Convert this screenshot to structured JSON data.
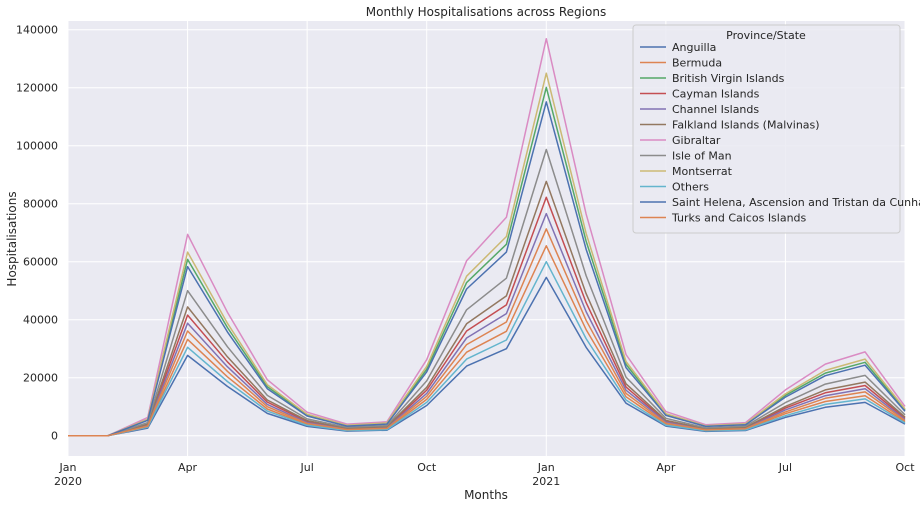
{
  "chart_data": {
    "type": "line",
    "title": "Monthly Hospitalisations across Regions",
    "xlabel": "Months",
    "ylabel": "Hospitalisations",
    "x": [
      "2020-01",
      "2020-02",
      "2020-03",
      "2020-04",
      "2020-05",
      "2020-06",
      "2020-07",
      "2020-08",
      "2020-09",
      "2020-10",
      "2020-11",
      "2020-12",
      "2021-01",
      "2021-02",
      "2021-03",
      "2021-04",
      "2021-05",
      "2021-06",
      "2021-07",
      "2021-08",
      "2021-09",
      "2021-10"
    ],
    "x_ticks": [
      {
        "label": "Jan",
        "sub": "2020",
        "at": "2020-01"
      },
      {
        "label": "Apr",
        "sub": "",
        "at": "2020-04"
      },
      {
        "label": "Jul",
        "sub": "",
        "at": "2020-07"
      },
      {
        "label": "Oct",
        "sub": "",
        "at": "2020-10"
      },
      {
        "label": "Jan",
        "sub": "2021",
        "at": "2021-01"
      },
      {
        "label": "Apr",
        "sub": "",
        "at": "2021-04"
      },
      {
        "label": "Jul",
        "sub": "",
        "at": "2021-07"
      },
      {
        "label": "Oct",
        "sub": "",
        "at": "2021-10"
      }
    ],
    "y_ticks": [
      "0",
      "20000",
      "40000",
      "60000",
      "80000",
      "100000",
      "120000",
      "140000"
    ],
    "ylim": [
      -7000,
      143000
    ],
    "grid": true,
    "legend": {
      "title": "Province/State",
      "placement": "top-right"
    },
    "series": [
      {
        "name": "Anguilla",
        "color": "#4c72b0",
        "values": [
          0,
          0,
          2600,
          27700,
          17000,
          7700,
          3200,
          1600,
          1900,
          10400,
          24000,
          30000,
          54600,
          30500,
          11200,
          3300,
          1500,
          1800,
          6300,
          9800,
          11500,
          4000
        ]
      },
      {
        "name": "Bermuda",
        "color": "#dd8452",
        "values": [
          0,
          0,
          3000,
          33200,
          20300,
          9200,
          3900,
          1900,
          2300,
          12500,
          28800,
          36000,
          65500,
          36600,
          13400,
          4000,
          1800,
          2200,
          7600,
          11800,
          13800,
          4800
        ]
      },
      {
        "name": "British Virgin Islands",
        "color": "#55a868",
        "values": [
          0,
          0,
          5500,
          60800,
          37300,
          16900,
          7100,
          3500,
          4200,
          22900,
          52800,
          66000,
          120100,
          67100,
          24600,
          7300,
          3300,
          4000,
          13900,
          21600,
          25300,
          8800
        ]
      },
      {
        "name": "Cayman Islands",
        "color": "#c44e52",
        "values": [
          0,
          0,
          3700,
          41600,
          25500,
          11600,
          4900,
          2400,
          2900,
          15700,
          36100,
          45100,
          82200,
          45900,
          16800,
          5000,
          2300,
          2700,
          9500,
          14800,
          17300,
          6000
        ]
      },
      {
        "name": "Channel Islands",
        "color": "#8172b3",
        "values": [
          0,
          0,
          3500,
          38800,
          23800,
          10800,
          4500,
          2200,
          2700,
          14600,
          33700,
          42100,
          76600,
          42800,
          15700,
          4700,
          2100,
          2500,
          8900,
          13800,
          16200,
          5600
        ]
      },
      {
        "name": "Falkland Islands (Malvinas)",
        "color": "#937860",
        "values": [
          0,
          0,
          4000,
          44400,
          27200,
          12300,
          5200,
          2600,
          3100,
          16700,
          38600,
          48200,
          87700,
          49000,
          17900,
          5300,
          2400,
          2900,
          10100,
          15800,
          18500,
          6400
        ]
      },
      {
        "name": "Gibraltar",
        "color": "#da8bc3",
        "values": [
          0,
          0,
          6300,
          69400,
          42600,
          19300,
          8100,
          4000,
          4800,
          26200,
          60300,
          75300,
          136900,
          76500,
          28000,
          8300,
          3800,
          4500,
          15800,
          24700,
          28900,
          10100
        ]
      },
      {
        "name": "Isle of Man",
        "color": "#8c8c8c",
        "values": [
          0,
          0,
          4500,
          50000,
          30700,
          13900,
          5800,
          2900,
          3500,
          18900,
          43400,
          54300,
          98700,
          55200,
          20200,
          6000,
          2700,
          3300,
          11400,
          17800,
          20800,
          7200
        ]
      },
      {
        "name": "Montserrat",
        "color": "#ccb974",
        "values": [
          0,
          0,
          5700,
          63300,
          38800,
          17600,
          7400,
          3600,
          4400,
          23900,
          55000,
          68700,
          125000,
          69800,
          25600,
          7600,
          3400,
          4100,
          14400,
          22500,
          26400,
          9200
        ]
      },
      {
        "name": "Others",
        "color": "#64b5cd",
        "values": [
          0,
          0,
          3000,
          30500,
          18700,
          8500,
          3600,
          1800,
          2100,
          11500,
          26400,
          33000,
          60000,
          33500,
          12300,
          3600,
          1700,
          2000,
          6900,
          10800,
          12700,
          4400
        ]
      },
      {
        "name": "Saint Helena, Ascension and Tristan da Cunha",
        "color": "#4c72b0",
        "values": [
          0,
          0,
          5300,
          58300,
          35800,
          16200,
          6800,
          3300,
          4000,
          22000,
          50600,
          63300,
          115100,
          64300,
          23500,
          7000,
          3200,
          3800,
          13300,
          20700,
          24300,
          8400
        ]
      },
      {
        "name": "Turks and Caicos Islands",
        "color": "#dd8452",
        "values": [
          0,
          0,
          3300,
          36100,
          22200,
          10000,
          4200,
          2100,
          2500,
          13600,
          31400,
          39200,
          71300,
          39800,
          14600,
          4300,
          2000,
          2400,
          8200,
          12900,
          15100,
          5200
        ]
      }
    ]
  }
}
